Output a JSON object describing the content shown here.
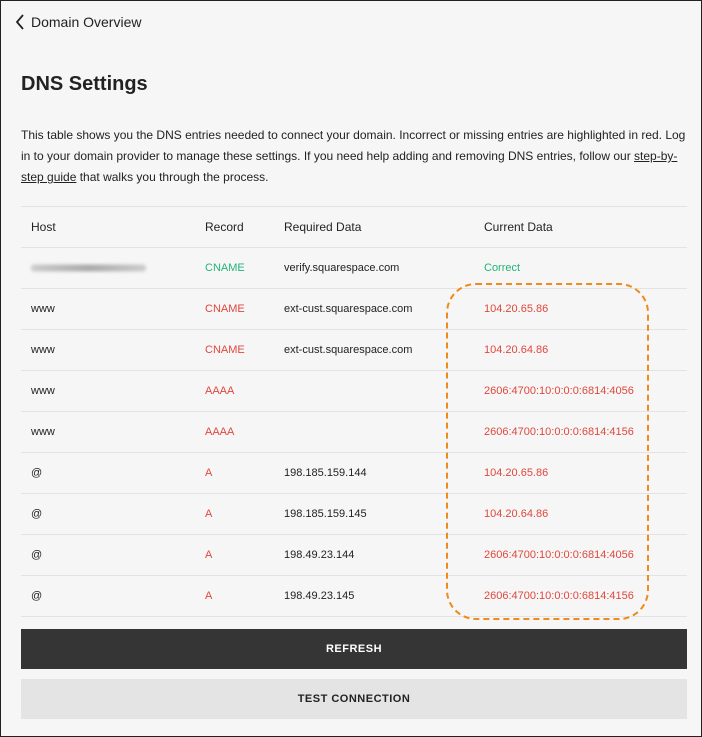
{
  "nav": {
    "back_label": "Domain Overview"
  },
  "page": {
    "title": "DNS Settings",
    "description_pre": "This table shows you the DNS entries needed to connect your domain. Incorrect or missing entries are highlighted in red. Log in to your domain provider to manage these settings. If you need help adding and removing DNS entries, follow our ",
    "guide_link": "step-by-step guide",
    "description_post": " that walks you through the process."
  },
  "table": {
    "headers": [
      "Host",
      "Record",
      "Required Data",
      "Current Data"
    ],
    "rows": [
      {
        "host": "",
        "record": "CNAME",
        "required": "verify.squarespace.com",
        "current": "Correct",
        "status": "ok"
      },
      {
        "host": "www",
        "record": "CNAME",
        "required": "ext-cust.squarespace.com",
        "current": "104.20.65.86",
        "status": "error"
      },
      {
        "host": "www",
        "record": "CNAME",
        "required": "ext-cust.squarespace.com",
        "current": "104.20.64.86",
        "status": "error"
      },
      {
        "host": "www",
        "record": "AAAA",
        "required": "",
        "current": "2606:4700:10:0:0:0:6814:4056",
        "status": "error"
      },
      {
        "host": "www",
        "record": "AAAA",
        "required": "",
        "current": "2606:4700:10:0:0:0:6814:4156",
        "status": "error"
      },
      {
        "host": "@",
        "record": "A",
        "required": "198.185.159.144",
        "current": "104.20.65.86",
        "status": "error"
      },
      {
        "host": "@",
        "record": "A",
        "required": "198.185.159.145",
        "current": "104.20.64.86",
        "status": "error"
      },
      {
        "host": "@",
        "record": "A",
        "required": "198.49.23.144",
        "current": "2606:4700:10:0:0:0:6814:4056",
        "status": "error"
      },
      {
        "host": "@",
        "record": "A",
        "required": "198.49.23.145",
        "current": "2606:4700:10:0:0:0:6814:4156",
        "status": "error"
      }
    ]
  },
  "buttons": {
    "refresh": "REFRESH",
    "test": "TEST CONNECTION"
  },
  "colors": {
    "error": "#e0473c",
    "ok": "#23b37a",
    "highlight": "#f08a1c"
  }
}
